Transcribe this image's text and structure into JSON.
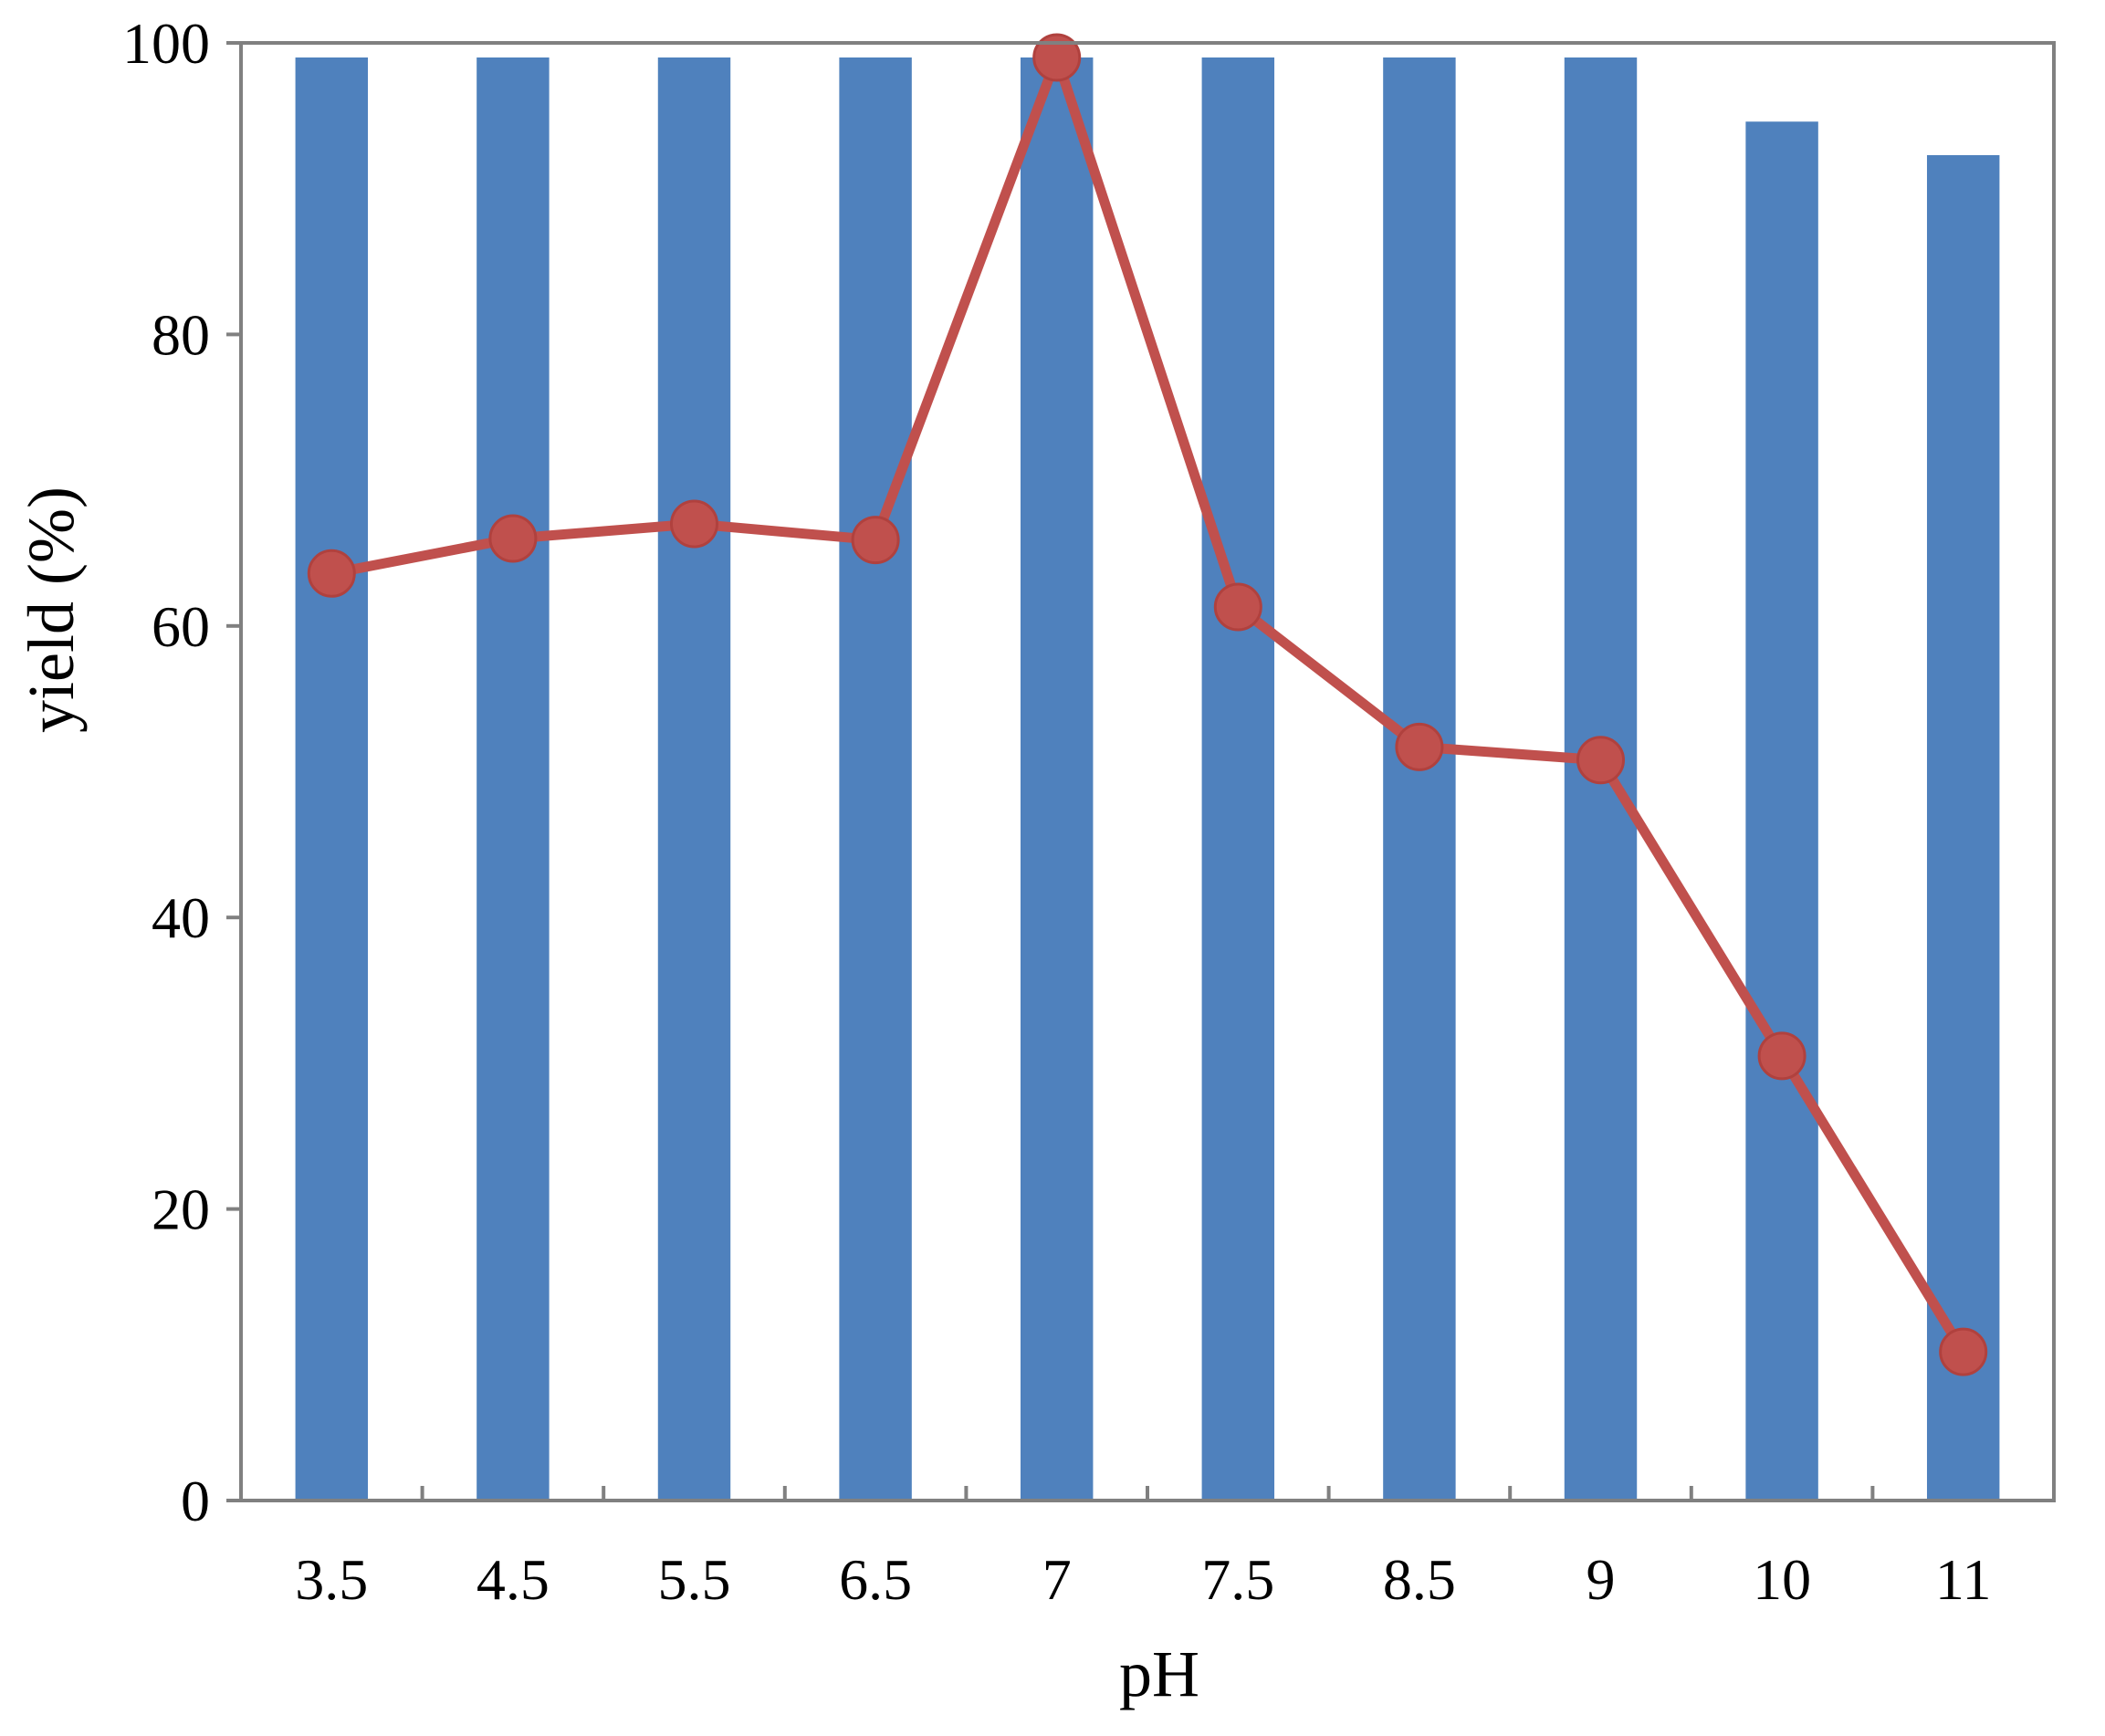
{
  "chart_data": {
    "type": "bar",
    "title": "",
    "xlabel": "pH",
    "ylabel": "yield (%)",
    "ylim": [
      0,
      100
    ],
    "yticks": [
      "0",
      "20",
      "40",
      "60",
      "80",
      "100"
    ],
    "grid": false,
    "legend": "none",
    "categories": [
      "3.5",
      "4.5",
      "5.5",
      "6.5",
      "7",
      "7.5",
      "8.5",
      "9",
      "10",
      "11"
    ],
    "series": [
      {
        "type": "bar",
        "color": "#4F81BD",
        "values": [
          99,
          99,
          99,
          99,
          99,
          99,
          99,
          99,
          94.6,
          92.3
        ]
      },
      {
        "type": "line",
        "color": "#C0504D",
        "values": [
          63.6,
          66,
          67,
          65.9,
          99,
          61.3,
          51.7,
          50.8,
          30.5,
          10.2
        ]
      }
    ]
  },
  "colors": {
    "bar": "#4F81BD",
    "line": "#C0504D",
    "axis": "#808080",
    "text": "#000000"
  }
}
